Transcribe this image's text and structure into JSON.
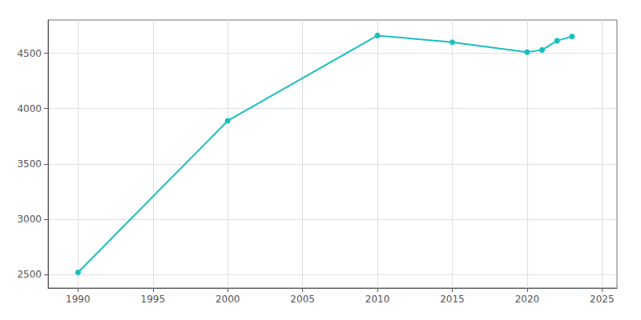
{
  "chart_data": {
    "type": "line",
    "x": [
      1990,
      2000,
      2010,
      2015,
      2020,
      2021,
      2022,
      2023
    ],
    "values": [
      2521,
      3890,
      4660,
      4600,
      4510,
      4530,
      4613,
      4651
    ],
    "color": "#1ABFBF",
    "marker": "circle",
    "xlim": [
      1988,
      2026
    ],
    "xticks": [
      1990,
      1995,
      2000,
      2005,
      2010,
      2015,
      2020,
      2025
    ],
    "ylim": [
      2380,
      4800
    ],
    "yticks": [
      2500,
      3000,
      3500,
      4000,
      4500
    ],
    "grid": true
  }
}
